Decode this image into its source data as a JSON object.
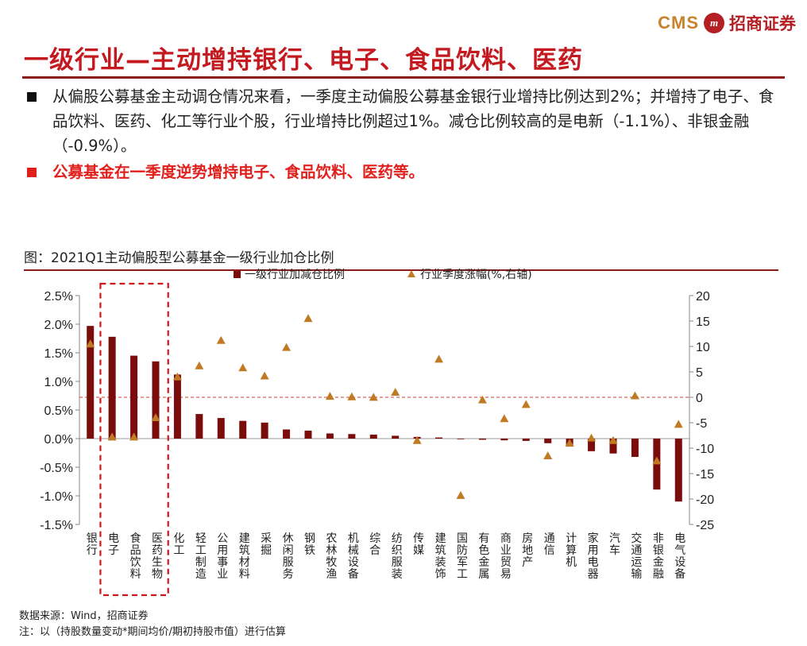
{
  "logo": {
    "brand": "CMS",
    "seal": "m",
    "name": "招商证券"
  },
  "page_title": "一级行业—主动增持银行、电子、食品饮料、医药",
  "bullets": [
    {
      "text": "从偏股公募基金主动调仓情况来看，一季度主动偏股公募基金银行业增持比例达到2%；并增持了电子、食品饮料、医药、化工等行业个股，行业增持比例超过1%。减仓比例较高的是电新（-1.1%）、非银金融（-0.9%）。",
      "highlight": false
    },
    {
      "text": "公募基金在一季度逆势增持电子、食品饮料、医药等。",
      "highlight": true
    }
  ],
  "figure_title": "图：2021Q1主动偏股型公募基金一级行业加仓比例",
  "chart_data": {
    "type": "bar",
    "categories": [
      "银行",
      "电子",
      "食品饮料",
      "医药生物",
      "化工",
      "轻工制造",
      "公用事业",
      "建筑材料",
      "采掘",
      "休闲服务",
      "钢铁",
      "农林牧渔",
      "机械设备",
      "综合",
      "纺织服装",
      "传媒",
      "建筑装饰",
      "国防军工",
      "有色金属",
      "商业贸易",
      "房地产",
      "通信",
      "计算机",
      "家用电器",
      "汽车",
      "交通运输",
      "非银金融",
      "电气设备"
    ],
    "series": [
      {
        "name": "一级行业加减仓比例",
        "axis": "left",
        "type": "bar",
        "color": "#7b0c0c",
        "values": [
          1.97,
          1.78,
          1.45,
          1.35,
          1.12,
          0.43,
          0.36,
          0.31,
          0.28,
          0.16,
          0.14,
          0.09,
          0.08,
          0.07,
          0.05,
          0.03,
          0.02,
          0.0,
          -0.02,
          -0.03,
          -0.04,
          -0.08,
          -0.14,
          -0.22,
          -0.26,
          -0.32,
          -0.89,
          -1.1
        ]
      },
      {
        "name": "行业季度涨幅(%,右轴)",
        "axis": "right",
        "type": "scatter",
        "color": "#c07a22",
        "values": [
          10.5,
          -7.8,
          -7.8,
          -4.0,
          4.0,
          6.2,
          11.2,
          5.8,
          4.2,
          9.8,
          15.5,
          0.2,
          0.1,
          0.0,
          1.0,
          -8.5,
          7.5,
          -19.3,
          -0.5,
          -4.2,
          -1.4,
          -11.5,
          -9.0,
          -8.0,
          -8.5,
          0.3,
          -12.5,
          -5.3
        ]
      }
    ],
    "y_left": {
      "min": -1.5,
      "max": 2.5,
      "ticks": [
        "-1.5%",
        "-1.0%",
        "-0.5%",
        "0.0%",
        "0.5%",
        "1.0%",
        "1.5%",
        "2.0%",
        "2.5%"
      ]
    },
    "y_right": {
      "min": -25,
      "max": 20,
      "ticks": [
        "-25",
        "-20",
        "-15",
        "-10",
        "-5",
        "0",
        "5",
        "10",
        "15",
        "20"
      ]
    },
    "reference_line": {
      "axis": "right",
      "value": 0
    },
    "highlight_box": {
      "from": "电子",
      "to": "医药生物"
    },
    "legend_placement": "top"
  },
  "notes": {
    "source": "数据来源：Wind，招商证券",
    "note": "注：以（持股数量变动*期间均价/期初持股市值）进行估算"
  }
}
